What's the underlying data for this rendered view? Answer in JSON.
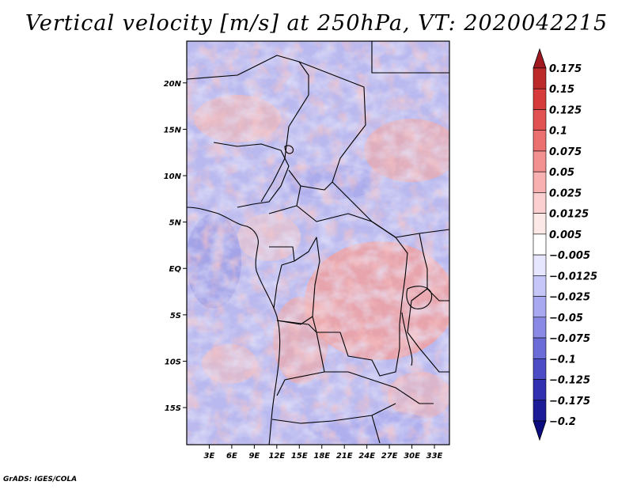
{
  "title": "Vertical velocity [m/s] at 250hPa, VT: 2020042215",
  "credit": "GrADS: IGES/COLA",
  "map": {
    "lat_ticks": [
      "20N",
      "15N",
      "10N",
      "5N",
      "EQ",
      "5S",
      "10S",
      "15S"
    ],
    "lat_values": [
      20,
      15,
      10,
      5,
      0,
      -5,
      -10,
      -15
    ],
    "lon_ticks": [
      "3E",
      "6E",
      "9E",
      "12E",
      "15E",
      "18E",
      "21E",
      "24E",
      "27E",
      "30E",
      "33E"
    ],
    "lon_values": [
      3,
      6,
      9,
      12,
      15,
      18,
      21,
      24,
      27,
      30,
      33
    ],
    "lon_range": [
      0,
      35
    ],
    "lat_range": [
      -19,
      24.5
    ]
  },
  "colorbar": {
    "labels": [
      "0.175",
      "0.15",
      "0.125",
      "0.1",
      "0.075",
      "0.05",
      "0.025",
      "0.0125",
      "0.005",
      "−0.005",
      "−0.0125",
      "−0.025",
      "−0.05",
      "−0.075",
      "−0.1",
      "−0.125",
      "−0.175",
      "−0.2"
    ],
    "colors": [
      "#a01820",
      "#bc2a2a",
      "#d63a3a",
      "#e35252",
      "#ec7070",
      "#f39090",
      "#f8b0b0",
      "#fbcfcf",
      "#fde8e8",
      "#ffffff",
      "#e6e6ff",
      "#c6c6f8",
      "#a8a8f0",
      "#8a8ae6",
      "#6c6cd8",
      "#4c4cc6",
      "#3030b0",
      "#1c1c98",
      "#0c0c80"
    ]
  }
}
